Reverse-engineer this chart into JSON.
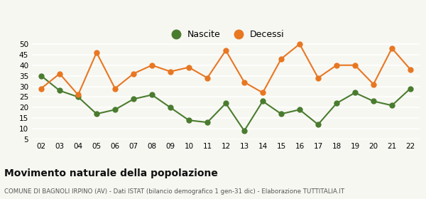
{
  "years": [
    "02",
    "03",
    "04",
    "05",
    "06",
    "07",
    "08",
    "09",
    "10",
    "11",
    "12",
    "13",
    "14",
    "15",
    "16",
    "17",
    "18",
    "19",
    "20",
    "21",
    "22"
  ],
  "nascite": [
    35,
    28,
    25,
    17,
    19,
    24,
    26,
    20,
    14,
    13,
    22,
    9,
    23,
    17,
    19,
    12,
    22,
    27,
    23,
    21,
    29
  ],
  "decessi": [
    29,
    36,
    26,
    46,
    29,
    36,
    40,
    37,
    39,
    34,
    47,
    32,
    27,
    43,
    50,
    34,
    40,
    40,
    31,
    48,
    38
  ],
  "nascite_color": "#4a7c2f",
  "decessi_color": "#e87722",
  "background_color": "#f7f7f2",
  "grid_color": "#ffffff",
  "title": "Movimento naturale della popolazione",
  "subtitle": "COMUNE DI BAGNOLI IRPINO (AV) - Dati ISTAT (bilancio demografico 1 gen-31 dic) - Elaborazione TUTTITALIA.IT",
  "legend_nascite": "Nascite",
  "legend_decessi": "Decessi",
  "ylim": [
    5,
    52
  ],
  "yticks": [
    5,
    10,
    15,
    20,
    25,
    30,
    35,
    40,
    45,
    50
  ],
  "marker_size": 5,
  "line_width": 1.5
}
